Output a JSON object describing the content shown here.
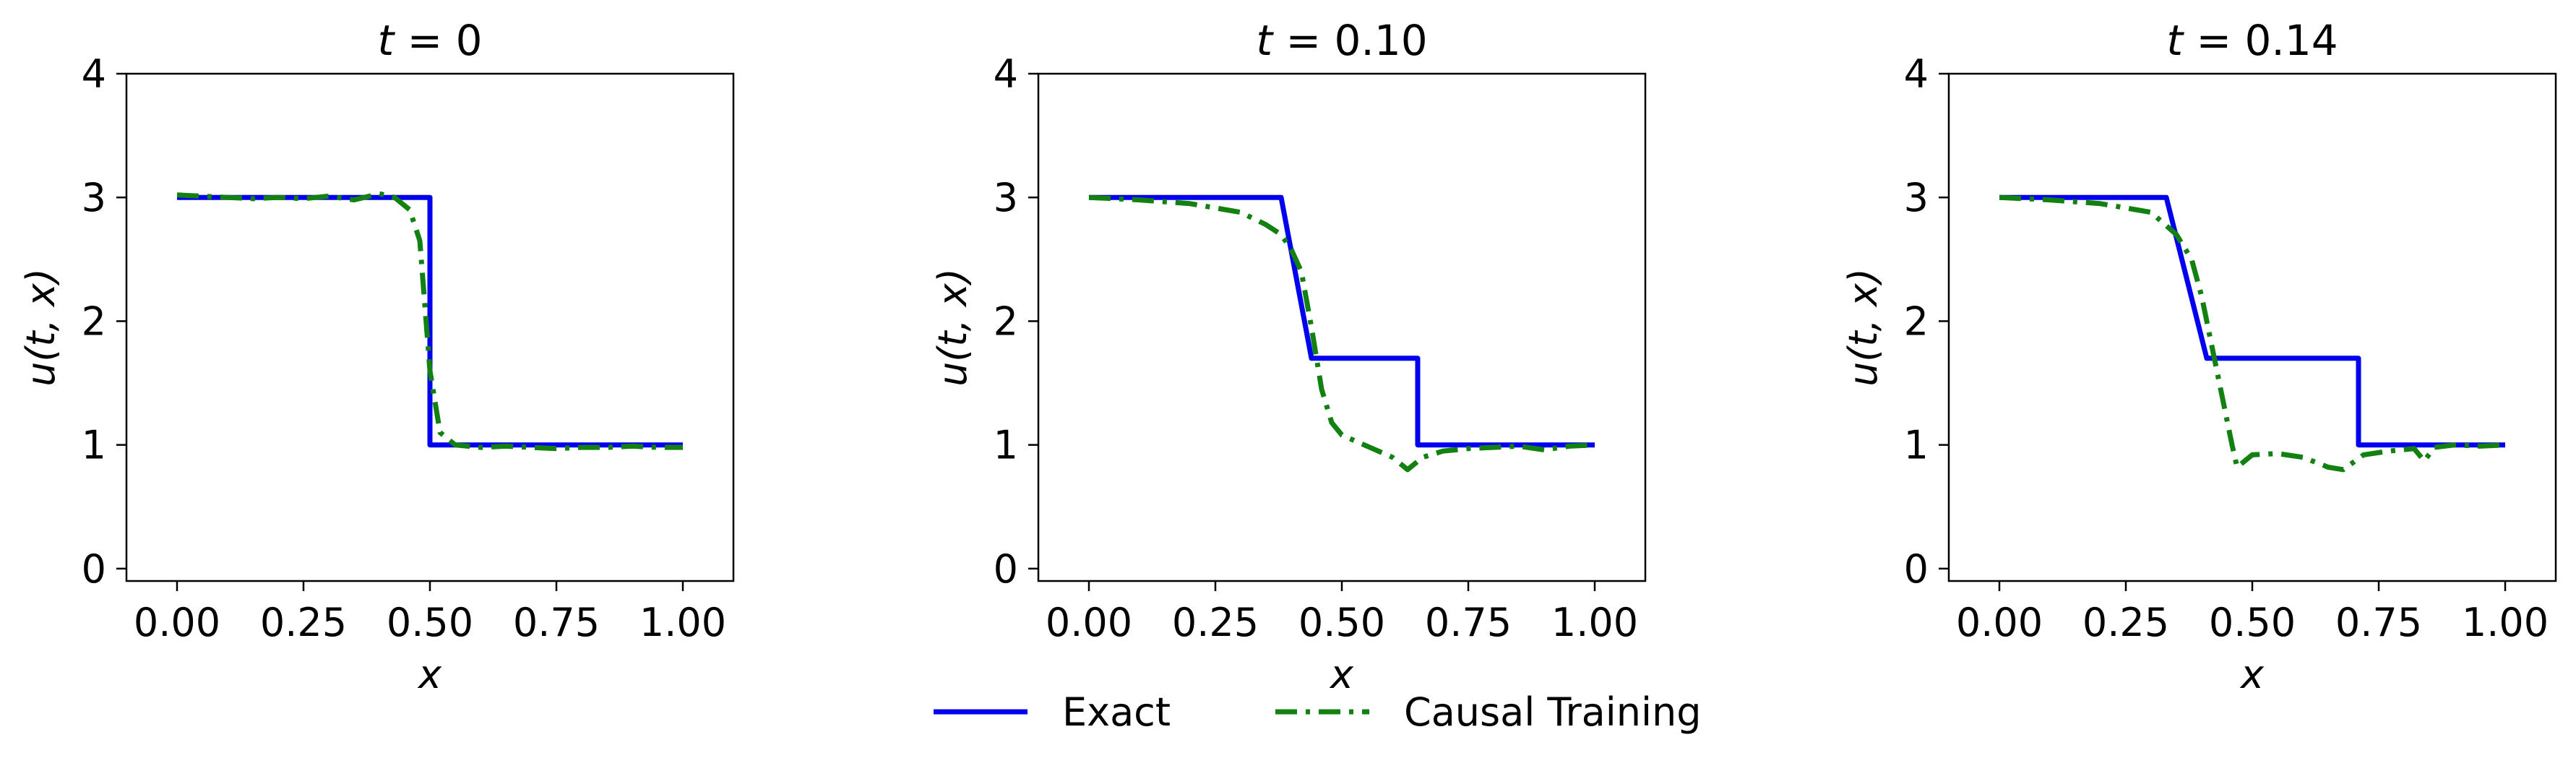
{
  "legend": {
    "items": [
      {
        "label": "Exact",
        "color": "#0000ee",
        "dash": "solid"
      },
      {
        "label": "Causal Training",
        "color": "#138012",
        "dash": "dashdot"
      }
    ]
  },
  "chart_data": [
    {
      "type": "line",
      "title": "t = 0",
      "xlabel": "x",
      "ylabel": "u(t, x)",
      "xlim": [
        -0.1,
        1.1
      ],
      "ylim": [
        -0.1,
        4.0
      ],
      "xticks": [
        "0.00",
        "0.25",
        "0.50",
        "0.75",
        "1.00"
      ],
      "yticks": [
        "0",
        "1",
        "2",
        "3",
        "4"
      ],
      "grid": false,
      "series": [
        {
          "name": "Exact",
          "color": "#0000ee",
          "x": [
            0.0,
            0.5,
            0.5,
            1.0
          ],
          "y": [
            3.0,
            3.0,
            1.0,
            1.0
          ]
        },
        {
          "name": "Causal Training",
          "color": "#138012",
          "x": [
            0.0,
            0.05,
            0.1,
            0.15,
            0.2,
            0.25,
            0.3,
            0.35,
            0.4,
            0.43,
            0.46,
            0.48,
            0.5,
            0.52,
            0.55,
            0.6,
            0.65,
            0.7,
            0.75,
            0.8,
            0.85,
            0.9,
            0.95,
            1.0
          ],
          "y": [
            3.02,
            3.01,
            3.0,
            2.99,
            3.0,
            2.99,
            3.01,
            2.98,
            3.03,
            3.0,
            2.9,
            2.65,
            1.6,
            1.1,
            1.0,
            0.98,
            0.99,
            0.98,
            0.97,
            0.98,
            0.98,
            0.99,
            0.98,
            0.98
          ]
        }
      ]
    },
    {
      "type": "line",
      "title": "t = 0.10",
      "xlabel": "x",
      "ylabel": "u(t, x)",
      "xlim": [
        -0.1,
        1.1
      ],
      "ylim": [
        -0.1,
        4.0
      ],
      "xticks": [
        "0.00",
        "0.25",
        "0.50",
        "0.75",
        "1.00"
      ],
      "yticks": [
        "0",
        "1",
        "2",
        "3",
        "4"
      ],
      "grid": false,
      "series": [
        {
          "name": "Exact",
          "color": "#0000ee",
          "x": [
            0.0,
            0.38,
            0.44,
            0.65,
            0.65,
            1.0
          ],
          "y": [
            3.0,
            3.0,
            1.7,
            1.7,
            1.0,
            1.0
          ]
        },
        {
          "name": "Causal Training",
          "color": "#138012",
          "x": [
            0.0,
            0.1,
            0.2,
            0.3,
            0.35,
            0.38,
            0.4,
            0.42,
            0.44,
            0.46,
            0.48,
            0.5,
            0.55,
            0.6,
            0.63,
            0.66,
            0.7,
            0.75,
            0.8,
            0.85,
            0.9,
            0.95,
            1.0
          ],
          "y": [
            3.0,
            2.98,
            2.95,
            2.88,
            2.78,
            2.7,
            2.58,
            2.4,
            1.95,
            1.45,
            1.18,
            1.08,
            0.99,
            0.9,
            0.8,
            0.9,
            0.95,
            0.97,
            0.98,
            0.99,
            0.96,
            0.99,
            1.0
          ]
        }
      ]
    },
    {
      "type": "line",
      "title": "t = 0.14",
      "xlabel": "x",
      "ylabel": "u(t, x)",
      "xlim": [
        -0.1,
        1.1
      ],
      "ylim": [
        -0.1,
        4.0
      ],
      "xticks": [
        "0.00",
        "0.25",
        "0.50",
        "0.75",
        "1.00"
      ],
      "yticks": [
        "0",
        "1",
        "2",
        "3",
        "4"
      ],
      "grid": false,
      "series": [
        {
          "name": "Exact",
          "color": "#0000ee",
          "x": [
            0.0,
            0.33,
            0.41,
            0.71,
            0.71,
            1.0
          ],
          "y": [
            3.0,
            3.0,
            1.7,
            1.7,
            1.0,
            1.0
          ]
        },
        {
          "name": "Causal Training",
          "color": "#138012",
          "x": [
            0.0,
            0.1,
            0.2,
            0.3,
            0.35,
            0.38,
            0.4,
            0.42,
            0.44,
            0.46,
            0.47,
            0.5,
            0.55,
            0.6,
            0.65,
            0.68,
            0.72,
            0.77,
            0.82,
            0.84,
            0.86,
            0.9,
            0.95,
            1.0
          ],
          "y": [
            3.0,
            2.98,
            2.95,
            2.88,
            2.7,
            2.5,
            2.2,
            1.8,
            1.4,
            1.0,
            0.82,
            0.92,
            0.93,
            0.9,
            0.82,
            0.8,
            0.92,
            0.95,
            0.97,
            0.87,
            0.98,
            1.0,
            0.99,
            1.0
          ]
        }
      ]
    }
  ]
}
